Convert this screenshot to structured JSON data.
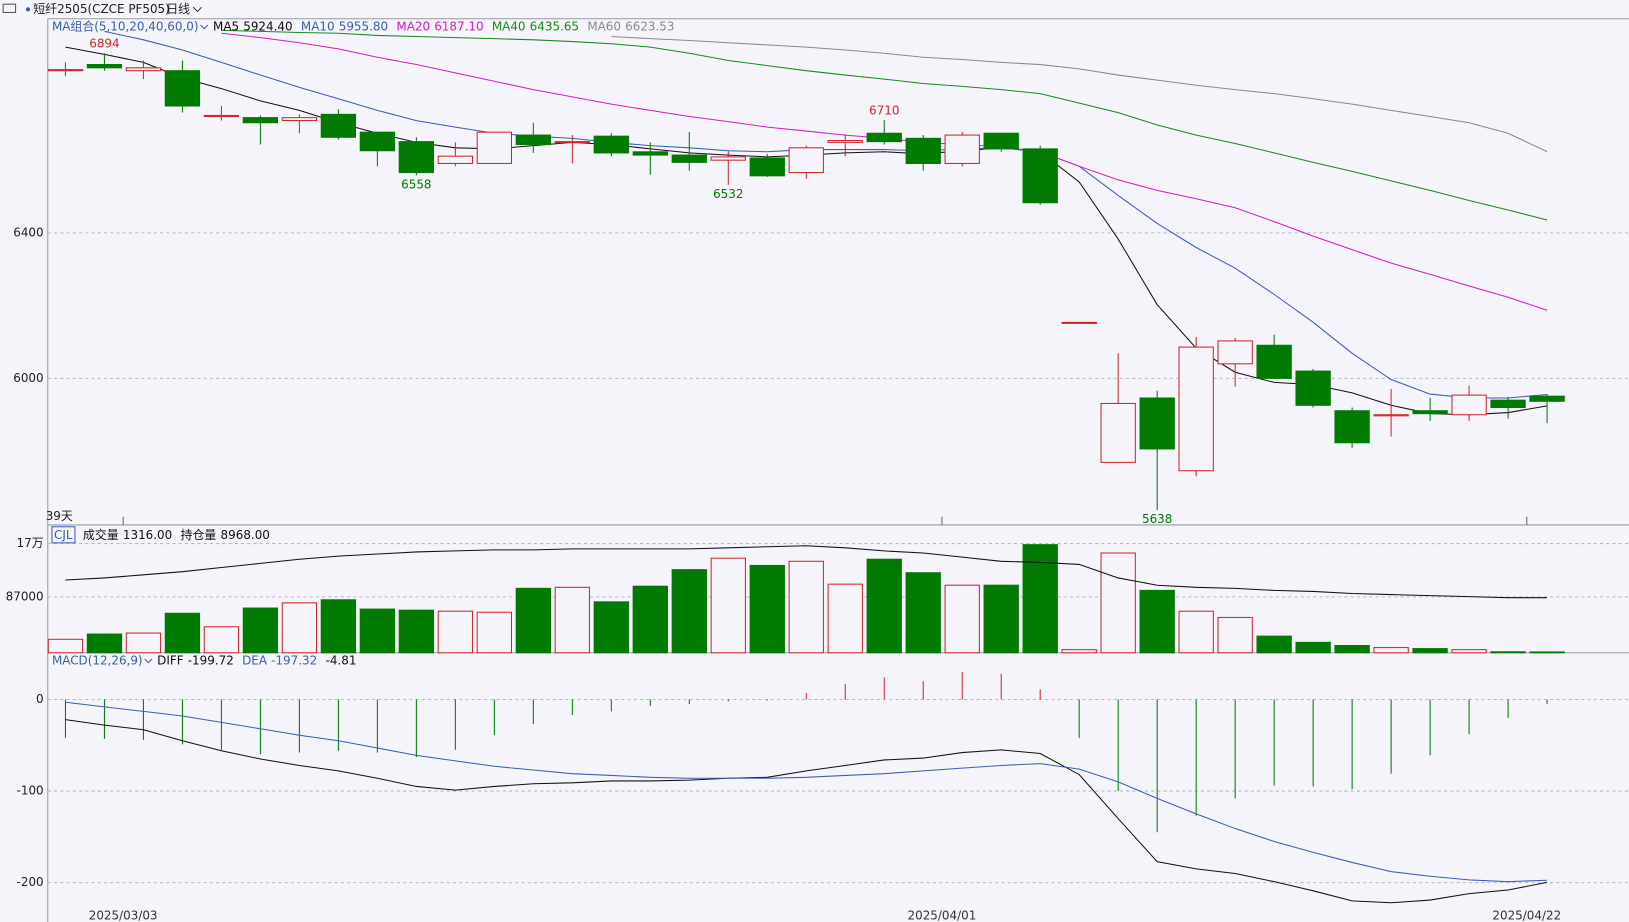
{
  "header": {
    "symbol": "短纤2505(CZCE PF505)",
    "period": "日线"
  },
  "chart_data": [
    {
      "type": "candlestick",
      "ma_group": "MA组合(5,10,20,40,60,0)",
      "days_label": "39天",
      "categories": [
        null,
        "2025/03/03",
        null,
        null,
        null,
        null,
        null,
        null,
        null,
        null,
        null,
        null,
        null,
        null,
        null,
        null,
        null,
        null,
        null,
        null,
        null,
        null,
        "2025/04/01",
        null,
        null,
        null,
        null,
        null,
        null,
        null,
        null,
        null,
        null,
        null,
        null,
        null,
        null,
        "2025/04/22",
        null
      ],
      "open": [
        6846,
        6863,
        6846,
        6846,
        6720,
        6717,
        6709,
        6726,
        6677,
        6651,
        6591,
        6591,
        6669,
        6649,
        6666,
        6623,
        6614,
        6600,
        6606,
        6566,
        6649,
        6674,
        6660,
        6591,
        6674,
        6631,
        6154,
        5769,
        5946,
        5746,
        6040,
        6091,
        6020,
        5911,
        5897,
        5911,
        5900,
        5940,
        5951
      ],
      "high": [
        6869,
        6894,
        6874,
        6874,
        6749,
        6723,
        6726,
        6740,
        6677,
        6663,
        6649,
        6677,
        6703,
        6669,
        6674,
        6649,
        6677,
        6626,
        6617,
        6640,
        6671,
        6710,
        6669,
        6677,
        6674,
        6640,
        6154,
        6069,
        5966,
        6114,
        6111,
        6120,
        6026,
        5920,
        5971,
        5946,
        5980,
        5949,
        5957
      ],
      "low": [
        6831,
        6846,
        6823,
        6731,
        6709,
        6643,
        6674,
        6657,
        6583,
        6558,
        6583,
        6589,
        6620,
        6591,
        6611,
        6560,
        6571,
        6532,
        6554,
        6549,
        6611,
        6643,
        6571,
        6583,
        6623,
        6477,
        6154,
        5769,
        5638,
        5731,
        5977,
        6000,
        5920,
        5809,
        5840,
        5883,
        5883,
        5889,
        5877
      ],
      "close": [
        6849,
        6854,
        6854,
        6749,
        6723,
        6703,
        6717,
        6663,
        6626,
        6566,
        6611,
        6677,
        6643,
        6651,
        6620,
        6614,
        6594,
        6609,
        6557,
        6634,
        6654,
        6651,
        6591,
        6669,
        6631,
        6483,
        6154,
        5931,
        5806,
        6086,
        6103,
        6000,
        5926,
        5823,
        5900,
        5903,
        5954,
        5920,
        5937
      ],
      "up_color": "#d0262a",
      "down_color": "#007a00",
      "ylim": [
        5597,
        6989
      ],
      "yticks": [
        6000,
        6400
      ],
      "grid": true,
      "annotations": [
        {
          "index": 1,
          "value": 6894
        },
        {
          "index": 9,
          "value": 6558
        },
        {
          "index": 17,
          "value": 6532
        },
        {
          "index": 21,
          "value": 6710
        },
        {
          "index": 28,
          "value": 5638
        }
      ],
      "series": [
        {
          "name": "MA5",
          "color": "#111111",
          "value_label": "5924.40",
          "values": [
            6911,
            6891,
            6869,
            6826,
            6797,
            6763,
            6737,
            6703,
            6674,
            6649,
            6634,
            6631,
            6640,
            6649,
            6643,
            6631,
            6620,
            6614,
            6609,
            6614,
            6620,
            6623,
            6617,
            6626,
            6634,
            6623,
            6540,
            6383,
            6203,
            6083,
            6017,
            5989,
            5983,
            5960,
            5926,
            5903,
            5900,
            5906,
            5924.4
          ]
        },
        {
          "name": "MA10",
          "color": "#3a5fb0",
          "value_label": "5955.80",
          "values": [
            null,
            6954,
            6931,
            6903,
            6869,
            6834,
            6800,
            6769,
            6737,
            6709,
            6691,
            6674,
            6666,
            6660,
            6649,
            6640,
            6634,
            6626,
            6623,
            6629,
            6629,
            6629,
            6626,
            6631,
            6634,
            6623,
            6583,
            6503,
            6426,
            6360,
            6303,
            6231,
            6154,
            6069,
            5997,
            5957,
            5946,
            5946,
            5955.8
          ]
        },
        {
          "name": "MA20",
          "color": "#d020c0",
          "value_label": "6187.10",
          "values": [
            null,
            null,
            null,
            null,
            6949,
            6937,
            6923,
            6906,
            6883,
            6863,
            6840,
            6817,
            6794,
            6774,
            6754,
            6737,
            6720,
            6706,
            6691,
            6680,
            6669,
            6660,
            6649,
            6643,
            6637,
            6623,
            6583,
            6546,
            6517,
            6494,
            6469,
            6431,
            6391,
            6354,
            6317,
            6286,
            6254,
            6223,
            6187.1
          ]
        },
        {
          "name": "MA40",
          "color": "#1a8a1a",
          "value_label": "6435.65",
          "values": [
            null,
            null,
            null,
            null,
            6957,
            6954,
            6951,
            6949,
            6943,
            6940,
            6937,
            6934,
            6931,
            6926,
            6920,
            6911,
            6894,
            6874,
            6860,
            6846,
            6834,
            6823,
            6811,
            6803,
            6794,
            6783,
            6757,
            6731,
            6697,
            6669,
            6646,
            6620,
            6594,
            6569,
            6543,
            6517,
            6489,
            6463,
            6435.65
          ]
        },
        {
          "name": "MA60",
          "color": "#8a8a8a",
          "value_label": "6623.53",
          "values": [
            null,
            null,
            null,
            null,
            null,
            null,
            null,
            null,
            null,
            null,
            null,
            null,
            null,
            null,
            6940,
            6934,
            6929,
            6923,
            6917,
            6911,
            6903,
            6894,
            6883,
            6877,
            6869,
            6863,
            6851,
            6834,
            6820,
            6806,
            6794,
            6783,
            6769,
            6754,
            6737,
            6720,
            6703,
            6674,
            6623.53
          ]
        }
      ]
    },
    {
      "type": "volume",
      "indicator": "CJL",
      "ylim": [
        0,
        199000
      ],
      "yticks": [
        {
          "value": 170000,
          "label": "17万"
        },
        87000
      ],
      "grid": true,
      "series": [
        {
          "name": "成交量",
          "value_label": "1316.00",
          "values": [
            21000,
            29100,
            30700,
            61500,
            40500,
            69600,
            77700,
            82500,
            68000,
            66300,
            64700,
            63100,
            100300,
            101900,
            79300,
            103600,
            129400,
            147200,
            135900,
            142400,
            106800,
            145600,
            124600,
            105200,
            105200,
            168300,
            4900,
            155300,
            97100,
            64700,
            55000,
            25900,
            16200,
            11300,
            8100,
            6500,
            4900,
            1600,
            1316
          ]
        },
        {
          "color": "#111111",
          "values": [
            113300,
            116500,
            121400,
            126200,
            132700,
            139200,
            145600,
            150500,
            153700,
            157000,
            158600,
            160200,
            160200,
            161800,
            161800,
            161800,
            161800,
            163400,
            165000,
            166700,
            163400,
            158600,
            155300,
            148900,
            142400,
            140800,
            137500,
            116500,
            105200,
            101900,
            100300,
            97100,
            95500,
            92200,
            90600,
            89000,
            87400,
            85800,
            85800
          ]
        }
      ],
      "extra_legend": {
        "name": "持仓量",
        "value_label": "8968.00"
      }
    },
    {
      "type": "macd",
      "indicator": "MACD(12,26,9)",
      "ylim": [
        -243,
        51
      ],
      "yticks": [
        -200,
        -100,
        0
      ],
      "grid": true,
      "series": [
        {
          "name": "DIFF",
          "color": "#111111",
          "value_label": "-199.72",
          "values": [
            -22,
            -28,
            -33,
            -45,
            -56,
            -65,
            -72,
            -78,
            -86,
            -95,
            -99,
            -95,
            -92,
            -91,
            -89,
            -89,
            -88,
            -86,
            -85,
            -78,
            -72,
            -66,
            -64,
            -58,
            -55,
            -59,
            -82,
            -130,
            -177,
            -185,
            -190,
            -199,
            -209,
            -220,
            -222,
            -219,
            -212,
            -208,
            -199.72
          ]
        },
        {
          "name": "DEA",
          "color": "#3a5fb0",
          "value_label": "-197.32",
          "values": [
            -3,
            -8,
            -13,
            -18,
            -25,
            -32,
            -39,
            -45,
            -53,
            -61,
            -67,
            -73,
            -77,
            -81,
            -83,
            -85,
            -86,
            -86,
            -86,
            -85,
            -83,
            -81,
            -78,
            -75,
            -72,
            -70,
            -76,
            -90,
            -108,
            -125,
            -141,
            -155,
            -167,
            -178,
            -188,
            -193,
            -197,
            -199,
            -197.32
          ]
        }
      ],
      "histogram": {
        "value_label": "-4.81",
        "up_color": "#d0262a",
        "down_color": "#007a00",
        "values": [
          -42,
          -43,
          -44,
          -49,
          -55,
          -60,
          -58,
          -56,
          -58,
          -63,
          -55,
          -39,
          -27,
          -17,
          -13,
          -7,
          -5,
          -2,
          -1,
          7,
          17,
          24,
          20,
          30,
          28,
          11,
          -42,
          -100,
          -145,
          -127,
          -108,
          -94,
          -95,
          -98,
          -81,
          -61,
          -38,
          -20,
          -4.81
        ]
      }
    }
  ]
}
